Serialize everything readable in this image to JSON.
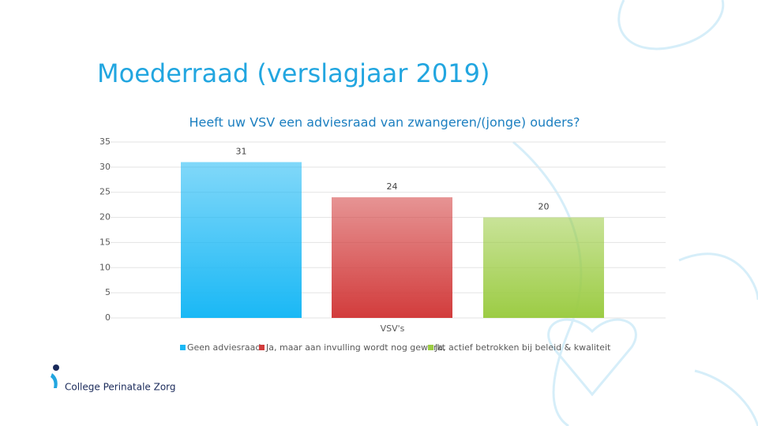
{
  "slide": {
    "title": "Moederraad (verslagjaar 2019)",
    "logo": "College Perinatale Zorg"
  },
  "chart_data": {
    "type": "bar",
    "title": "Heeft uw VSV een adviesraad van zwangeren/(jonge) ouders?",
    "categories": [
      "VSV's"
    ],
    "series": [
      {
        "name": "Geen adviesraad",
        "color": "#1ab8f5",
        "values": [
          31
        ]
      },
      {
        "name": "Ja, maar aan invulling wordt nog gewerkt",
        "color": "#d23c3c",
        "values": [
          24
        ]
      },
      {
        "name": "Ja, actief betrokken bij beleid & kwaliteit",
        "color": "#9ccc44",
        "values": [
          20
        ]
      }
    ],
    "ylim": [
      0,
      35
    ],
    "yticks": [
      0,
      5,
      10,
      15,
      20,
      25,
      30,
      35
    ],
    "grid": true,
    "legend": "bottom"
  }
}
